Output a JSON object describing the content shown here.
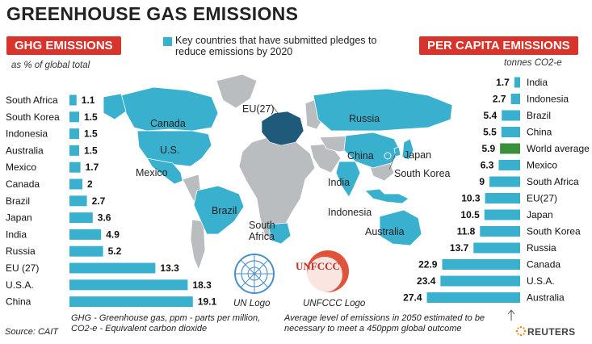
{
  "title": "GREENHOUSE GAS EMISSIONS",
  "legend": {
    "text": "Key countries that have submitted pledges to reduce emissions by 2020"
  },
  "colors": {
    "bar": "#3ab0cf",
    "highlight": "#3a8f3a",
    "header": "#d9342b",
    "map_land": "#b9bdc0",
    "map_pledge": "#3ab0cf",
    "map_eu": "#1f5a7a"
  },
  "ghg": {
    "header": "GHG EMISSIONS",
    "unit": "as % of global total"
  },
  "per_capita": {
    "header": "PER CAPITA EMISSIONS",
    "unit": "tonnes CO2-e"
  },
  "chart_data": [
    {
      "type": "bar",
      "title": "GHG EMISSIONS",
      "subtitle": "as % of global total",
      "orientation": "horizontal",
      "categories": [
        "South Africa",
        "South Korea",
        "Indonesia",
        "Australia",
        "Mexico",
        "Canada",
        "Brazil",
        "Japan",
        "India",
        "Russia",
        "EU (27)",
        "U.S.A.",
        "China"
      ],
      "values": [
        1.1,
        1.5,
        1.5,
        1.5,
        1.7,
        2,
        2.7,
        3.6,
        4.9,
        5.2,
        13.3,
        18.3,
        19.1
      ],
      "value_labels": [
        "1.1",
        "1.5",
        "1.5",
        "1.5",
        "1.7",
        "2",
        "2.7",
        "3.6",
        "4.9",
        "5.2",
        "13.3",
        "18.3",
        "19.1"
      ],
      "xlim": [
        0,
        20
      ],
      "grid": false
    },
    {
      "type": "bar",
      "title": "PER CAPITA EMISSIONS",
      "subtitle": "tonnes CO2-e",
      "orientation": "horizontal",
      "categories": [
        "India",
        "Indonesia",
        "Brazil",
        "China",
        "World average",
        "Mexico",
        "South Africa",
        "EU(27)",
        "Japan",
        "South Korea",
        "Russia",
        "Canada",
        "U.S.A.",
        "Australia"
      ],
      "values": [
        1.7,
        2.7,
        5.4,
        5.5,
        5.9,
        6.3,
        9,
        10.3,
        10.5,
        11.8,
        13.7,
        22.9,
        23.4,
        27.4
      ],
      "value_labels": [
        "1.7",
        "2.7",
        "5.4",
        "5.5",
        "5.9",
        "6.3",
        "9",
        "10.3",
        "10.5",
        "11.8",
        "13.7",
        "22.9",
        "23.4",
        "27.4"
      ],
      "highlight": "World average",
      "xlim": [
        0,
        28
      ],
      "grid": false
    }
  ],
  "map_labels": [
    {
      "id": "canada",
      "text": "Canada"
    },
    {
      "id": "us",
      "text": "U.S."
    },
    {
      "id": "mexico",
      "text": "Mexico"
    },
    {
      "id": "brazil",
      "text": "Brazil"
    },
    {
      "id": "south-africa",
      "text": "South\nAfrica"
    },
    {
      "id": "eu",
      "text": "EU(27)"
    },
    {
      "id": "russia",
      "text": "Russia"
    },
    {
      "id": "china",
      "text": "China"
    },
    {
      "id": "japan",
      "text": "Japan"
    },
    {
      "id": "south-korea",
      "text": "South Korea"
    },
    {
      "id": "india",
      "text": "India"
    },
    {
      "id": "indonesia",
      "text": "Indonesia"
    },
    {
      "id": "australia",
      "text": "Australia"
    }
  ],
  "logos": {
    "un_label": "UN Logo",
    "unfccc_label": "UNFCCC Logo",
    "unfccc_text": "UNFCCC"
  },
  "footnote": "GHG - Greenhouse gas,  ppm - parts per million, CO2-e - Equivalent carbon dioxide",
  "source": "Source: CAIT",
  "avg_note": "Average level of emissions in 2050 estimated to be necessary to meet a 450ppm global outcome",
  "reuters": "REUTERS"
}
